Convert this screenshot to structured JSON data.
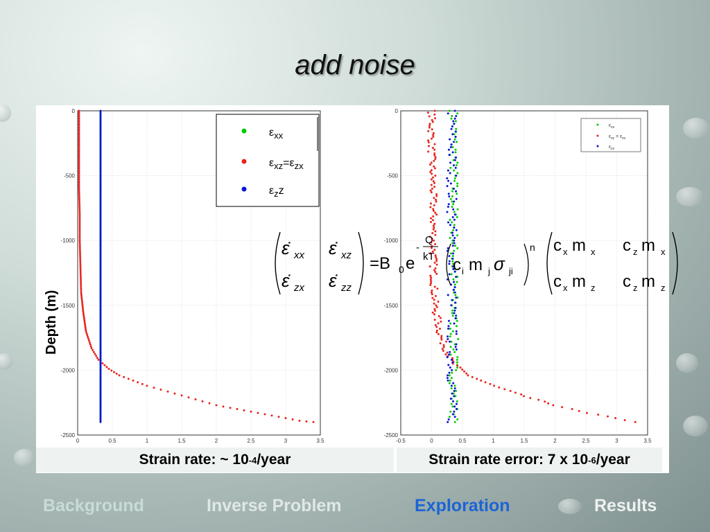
{
  "slide": {
    "title": "add noise"
  },
  "ylabel": "Depth (m)",
  "captions": {
    "left": "Strain rate: ~ 10",
    "left_sup": "-4",
    "left_tail": " /year",
    "right": "Strain rate error: 7 x 10",
    "right_sup": "-6",
    "right_tail": " /year"
  },
  "nav": {
    "items": [
      {
        "label": "Background",
        "state": "dim"
      },
      {
        "label": "Inverse Problem",
        "state": "normal"
      },
      {
        "label": "Exploration",
        "state": "active"
      },
      {
        "label": "Results",
        "state": "normal"
      }
    ]
  },
  "legend_labels": {
    "xx": "xx",
    "xz": "xz",
    "eq": "=",
    "zx": "zx",
    "z": "z",
    "zz_tail": "z"
  },
  "equation": {
    "rhs_prefix": "=B",
    "rhs_sub": "0",
    "exp_base": "e",
    "exp_num": "Q",
    "exp_den": "kT",
    "exp_minus": "-",
    "power": "n",
    "m11": "c",
    "m11s": "x",
    "m11b": "m",
    "m11bs": "x",
    "m12": "c",
    "m12s": "z",
    "m12b": "m",
    "m12bs": "x",
    "m21": "c",
    "m21s": "x",
    "m21b": "m",
    "m21bs": "z",
    "m22": "c",
    "m22s": "z",
    "m22b": "m",
    "m22bs": "z",
    "lhs11": "xx",
    "lhs12": "xz",
    "lhs21": "zx",
    "lhs22": "zz",
    "mid": "c",
    "mid_i": "i",
    "mid_m": "m",
    "mid_j": "j",
    "mid_sig": "σ",
    "mid_ji": "ji"
  },
  "chart_data": [
    {
      "type": "scatter",
      "title": "",
      "xlabel": "",
      "ylabel": "Depth (m)",
      "xlim": [
        0,
        3.5
      ],
      "ylim": [
        -2500,
        0
      ],
      "xticks": [
        "0",
        "0.5",
        "1",
        "1.5",
        "2",
        "2.5",
        "3",
        "3.5"
      ],
      "yticks": [
        "0",
        "-500",
        "-1000",
        "-1500",
        "-2000",
        "-2500"
      ],
      "grid": true,
      "legend": {
        "position": "top-right",
        "entries": [
          "εxx",
          "εxz=εzx",
          "εzz"
        ]
      },
      "series": [
        {
          "name": "εxx",
          "color": "#00cc00",
          "x": [
            0.33,
            0.33
          ],
          "y": [
            0,
            -2400
          ],
          "style": "dense-line"
        },
        {
          "name": "εxz=εzx",
          "color": "#e8251d",
          "points": [
            [
              0.02,
              0
            ],
            [
              0.02,
              -200
            ],
            [
              0.02,
              -400
            ],
            [
              0.02,
              -600
            ],
            [
              0.03,
              -800
            ],
            [
              0.03,
              -1000
            ],
            [
              0.04,
              -1200
            ],
            [
              0.05,
              -1400
            ],
            [
              0.08,
              -1550
            ],
            [
              0.12,
              -1700
            ],
            [
              0.2,
              -1830
            ],
            [
              0.3,
              -1920
            ],
            [
              0.45,
              -1990
            ],
            [
              0.6,
              -2040
            ],
            [
              0.8,
              -2080
            ],
            [
              1.0,
              -2120
            ],
            [
              1.2,
              -2150
            ],
            [
              1.4,
              -2180
            ],
            [
              1.6,
              -2210
            ],
            [
              1.8,
              -2240
            ],
            [
              2.0,
              -2270
            ],
            [
              2.2,
              -2290
            ],
            [
              2.4,
              -2310
            ],
            [
              2.6,
              -2330
            ],
            [
              2.8,
              -2350
            ],
            [
              3.0,
              -2370
            ],
            [
              3.2,
              -2390
            ],
            [
              3.4,
              -2400
            ]
          ]
        },
        {
          "name": "εzz",
          "color": "#0a14d8",
          "x": [
            0.33,
            0.33
          ],
          "y": [
            0,
            -2400
          ],
          "style": "dense-line"
        }
      ]
    },
    {
      "type": "scatter",
      "title": "",
      "xlabel": "",
      "ylabel": "",
      "xlim": [
        -0.5,
        3.5
      ],
      "ylim": [
        -2500,
        0
      ],
      "xticks": [
        "-0.5",
        "0",
        "0.5",
        "1",
        "1.5",
        "2",
        "2.5",
        "3",
        "3.5"
      ],
      "yticks": [
        "0",
        "-500",
        "-1000",
        "-1500",
        "-2000",
        "-2500"
      ],
      "grid": true,
      "legend": {
        "position": "top-right",
        "entries": [
          "εxx",
          "εxz = εzx",
          "εzz"
        ]
      },
      "series": [
        {
          "name": "εxx",
          "color": "#00cc00",
          "center": 0.36,
          "noise": 0.07,
          "y_range": [
            0,
            -2400
          ],
          "count": 120
        },
        {
          "name": "εxz=εzx",
          "color": "#e8251d",
          "points": [
            [
              0.0,
              0
            ],
            [
              0.0,
              -300
            ],
            [
              0.02,
              -600
            ],
            [
              0.03,
              -900
            ],
            [
              0.03,
              -1200
            ],
            [
              0.05,
              -1500
            ],
            [
              0.15,
              -1750
            ],
            [
              0.35,
              -1950
            ],
            [
              0.6,
              -2040
            ],
            [
              1.0,
              -2120
            ],
            [
              1.5,
              -2200
            ],
            [
              2.0,
              -2270
            ],
            [
              2.5,
              -2330
            ],
            [
              3.0,
              -2370
            ],
            [
              3.3,
              -2400
            ]
          ],
          "noise": 0.12
        },
        {
          "name": "εzz",
          "color": "#0a14d8",
          "center": 0.33,
          "noise": 0.08,
          "y_range": [
            0,
            -2400
          ],
          "count": 120
        }
      ]
    }
  ]
}
